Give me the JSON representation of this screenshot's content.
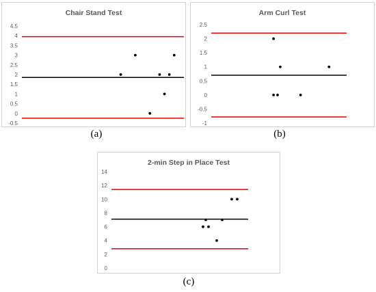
{
  "chart_data": [
    {
      "type": "scatter",
      "title": "Chair Stand Test",
      "caption": "(a)",
      "ylim": [
        -0.5,
        4.5
      ],
      "yticks": [
        "4.5",
        "4",
        "3.5",
        "3",
        "2.5",
        "2",
        "1.5",
        "1",
        "0.5",
        "0",
        "-0.5"
      ],
      "ytick_values": [
        4.5,
        4,
        3.5,
        3,
        2.5,
        2,
        1.5,
        1,
        0.5,
        0,
        -0.5
      ],
      "xlim": [
        0,
        10
      ],
      "points": [
        [
          6.1,
          2
        ],
        [
          7.0,
          3
        ],
        [
          7.9,
          0
        ],
        [
          8.5,
          2
        ],
        [
          8.8,
          1
        ],
        [
          9.1,
          2
        ],
        [
          9.4,
          3
        ]
      ],
      "lines": [
        {
          "name": "mean",
          "y": 1.85,
          "color": "#000000"
        },
        {
          "name": "upper-limit",
          "y": 3.95,
          "color": "#e00000"
        },
        {
          "name": "lower-limit",
          "y": -0.25,
          "color": "#e00000"
        }
      ],
      "grid": false,
      "legend": "none"
    },
    {
      "type": "scatter",
      "title": "Arm Curl Test",
      "caption": "(b)",
      "ylim": [
        -1,
        2.5
      ],
      "yticks": [
        "2.5",
        "2",
        "1.5",
        "1",
        "0.5",
        "0",
        "-0.5",
        "-1"
      ],
      "ytick_values": [
        2.5,
        2,
        1.5,
        1,
        0.5,
        0,
        -0.5,
        -1
      ],
      "xlim": [
        0,
        10
      ],
      "points": [
        [
          4.6,
          2
        ],
        [
          4.6,
          0
        ],
        [
          4.9,
          0
        ],
        [
          5.1,
          1
        ],
        [
          6.6,
          0
        ],
        [
          8.7,
          1
        ]
      ],
      "lines": [
        {
          "name": "mean",
          "y": 0.7,
          "color": "#000000"
        },
        {
          "name": "upper-limit",
          "y": 2.2,
          "color": "#e00000"
        },
        {
          "name": "lower-limit",
          "y": -0.78,
          "color": "#e00000"
        }
      ],
      "grid": false,
      "legend": "none"
    },
    {
      "type": "scatter",
      "title": "2-min Step in Place Test",
      "caption": "(c)",
      "ylim": [
        0,
        14
      ],
      "yticks": [
        "14",
        "12",
        "10",
        "8",
        "6",
        "4",
        "2",
        "0"
      ],
      "ytick_values": [
        14,
        12,
        10,
        8,
        6,
        4,
        2,
        0
      ],
      "xlim": [
        0,
        10
      ],
      "points": [
        [
          6.7,
          6
        ],
        [
          6.9,
          7
        ],
        [
          7.1,
          6
        ],
        [
          7.7,
          4
        ],
        [
          8.1,
          7
        ],
        [
          8.8,
          10
        ],
        [
          9.2,
          10
        ]
      ],
      "lines": [
        {
          "name": "mean",
          "y": 7.1,
          "color": "#000000"
        },
        {
          "name": "upper-limit",
          "y": 11.4,
          "color": "#e00000"
        },
        {
          "name": "lower-limit",
          "y": 2.8,
          "color": "#e00000"
        }
      ],
      "grid": false,
      "legend": "none"
    }
  ]
}
